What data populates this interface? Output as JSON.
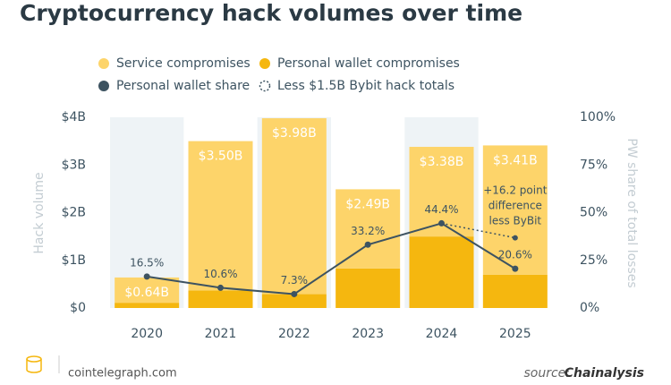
{
  "chart_data": {
    "type": "stacked-bar-line",
    "title": "Cryptocurrency hack volumes over time",
    "categories": [
      "2020",
      "2021",
      "2022",
      "2023",
      "2024",
      "2025"
    ],
    "series": [
      {
        "name": "Service compromises",
        "color": "#fdd46a",
        "values": [
          0.53,
          3.13,
          3.69,
          1.66,
          1.88,
          2.71
        ]
      },
      {
        "name": "Personal wallet compromises",
        "color": "#f5b70f",
        "values": [
          0.11,
          0.37,
          0.29,
          0.83,
          1.5,
          0.7
        ]
      },
      {
        "name": "Personal wallet share",
        "color": "#3d5361",
        "axis": "y2",
        "values": [
          16.5,
          10.6,
          7.3,
          33.2,
          44.4,
          20.6
        ],
        "value_labels": [
          "16.5%",
          "10.6%",
          "7.3%",
          "33.2%",
          "44.4%",
          "20.6%"
        ]
      }
    ],
    "totals": {
      "values": [
        0.64,
        3.5,
        3.98,
        2.49,
        3.38,
        3.41
      ],
      "value_labels": [
        "$0.64B",
        "$3.50B",
        "$3.98B",
        "$2.49B",
        "$3.38B",
        "$3.41B"
      ]
    },
    "adjusted": {
      "name": "Less $1.5B Bybit hack totals",
      "color": "#3d5361",
      "x": [
        "2024",
        "2025"
      ],
      "values": [
        44.4,
        36.8
      ]
    },
    "annotation": [
      "+16.2 point",
      "difference",
      "less ByBit"
    ],
    "ylabel": "Hack volume",
    "y2label": "PW share of total losses",
    "ylim": [
      0,
      4
    ],
    "yticks": [
      {
        "value": 0,
        "label": "$0"
      },
      {
        "value": 1,
        "label": "$1B"
      },
      {
        "value": 2,
        "label": "$2B"
      },
      {
        "value": 3,
        "label": "$3B"
      },
      {
        "value": 4,
        "label": "$4B"
      }
    ],
    "y2lim": [
      0,
      100
    ],
    "y2ticks": [
      {
        "value": 0,
        "label": "0%"
      },
      {
        "value": 25,
        "label": "25%"
      },
      {
        "value": 50,
        "label": "50%"
      },
      {
        "value": 75,
        "label": "75%"
      },
      {
        "value": 100,
        "label": "100%"
      }
    ]
  },
  "footer": {
    "site": "cointelegraph.com",
    "source_prefix": "source:",
    "source": "Chainalysis"
  }
}
